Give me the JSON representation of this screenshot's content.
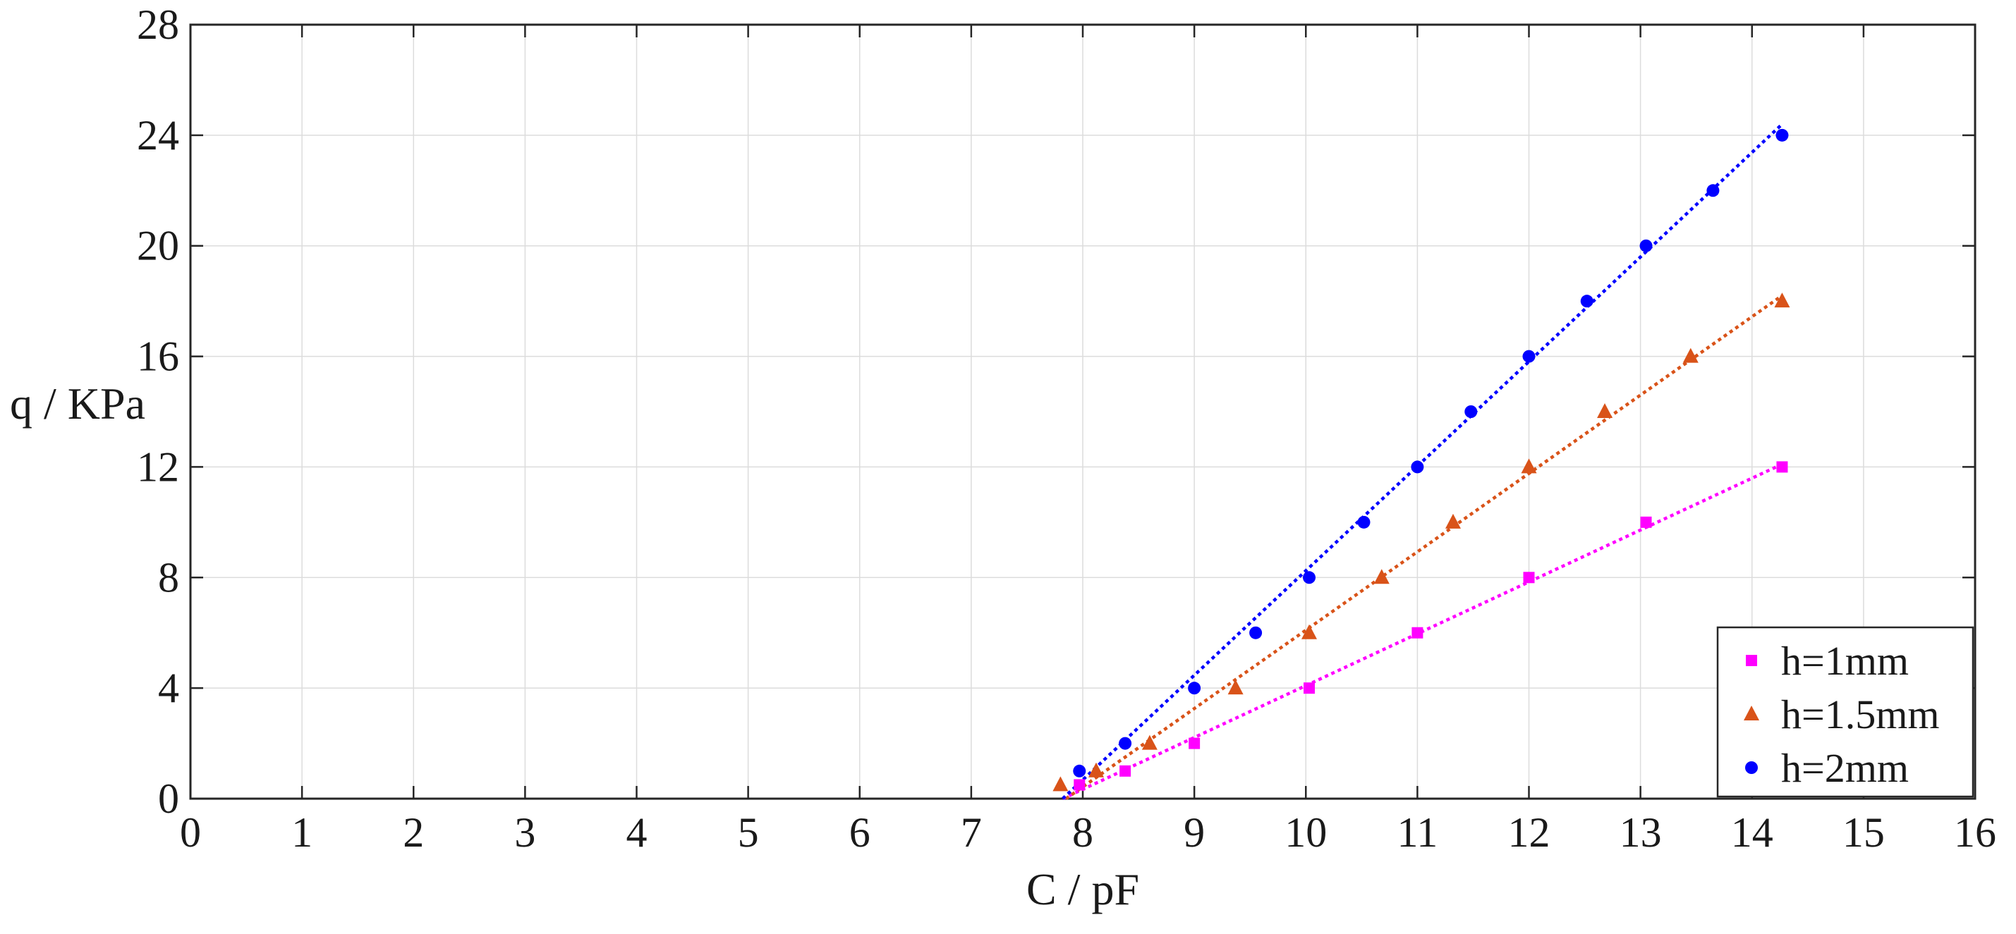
{
  "chart_data": {
    "type": "scatter",
    "xlabel": "C / pF",
    "ylabel": "q / KPa",
    "xlim": [
      0,
      16
    ],
    "ylim": [
      0,
      28
    ],
    "xticks": [
      0,
      1,
      2,
      3,
      4,
      5,
      6,
      7,
      8,
      9,
      10,
      11,
      12,
      13,
      14,
      15,
      16
    ],
    "yticks": [
      0,
      4,
      8,
      12,
      16,
      20,
      24,
      28
    ],
    "grid": true,
    "legend_position": "bottom-right",
    "series": [
      {
        "name": "h=1mm",
        "color": "#ff00ff",
        "marker": "square",
        "x": [
          7.97,
          8.38,
          9.0,
          10.03,
          11.0,
          12.0,
          13.05,
          14.27
        ],
        "y": [
          0.5,
          1.0,
          2.0,
          4.0,
          6.0,
          8.0,
          10.0,
          12.0
        ],
        "fit": {
          "x": [
            7.82,
            14.27
          ],
          "y": [
            0.0,
            12.1
          ]
        }
      },
      {
        "name": "h=1.5mm",
        "color": "#d95319",
        "marker": "triangle",
        "x": [
          7.8,
          8.12,
          8.6,
          9.37,
          10.03,
          10.68,
          11.32,
          12.0,
          12.68,
          13.45,
          14.27
        ],
        "y": [
          0.5,
          1.0,
          2.0,
          4.0,
          6.0,
          8.0,
          10.0,
          12.0,
          14.0,
          16.0,
          18.0
        ],
        "fit": {
          "x": [
            7.85,
            14.27
          ],
          "y": [
            0.0,
            18.2
          ]
        }
      },
      {
        "name": "h=2mm",
        "color": "#0000ff",
        "marker": "circle",
        "x": [
          7.97,
          8.38,
          9.0,
          9.55,
          10.03,
          10.52,
          11.0,
          11.48,
          12.0,
          12.52,
          13.05,
          13.65,
          14.27
        ],
        "y": [
          1.0,
          2.0,
          4.0,
          6.0,
          8.0,
          10.0,
          12.0,
          14.0,
          16.0,
          18.0,
          20.0,
          22.0,
          24.0
        ],
        "fit": {
          "x": [
            7.82,
            14.27
          ],
          "y": [
            0.0,
            24.4
          ]
        }
      }
    ]
  }
}
